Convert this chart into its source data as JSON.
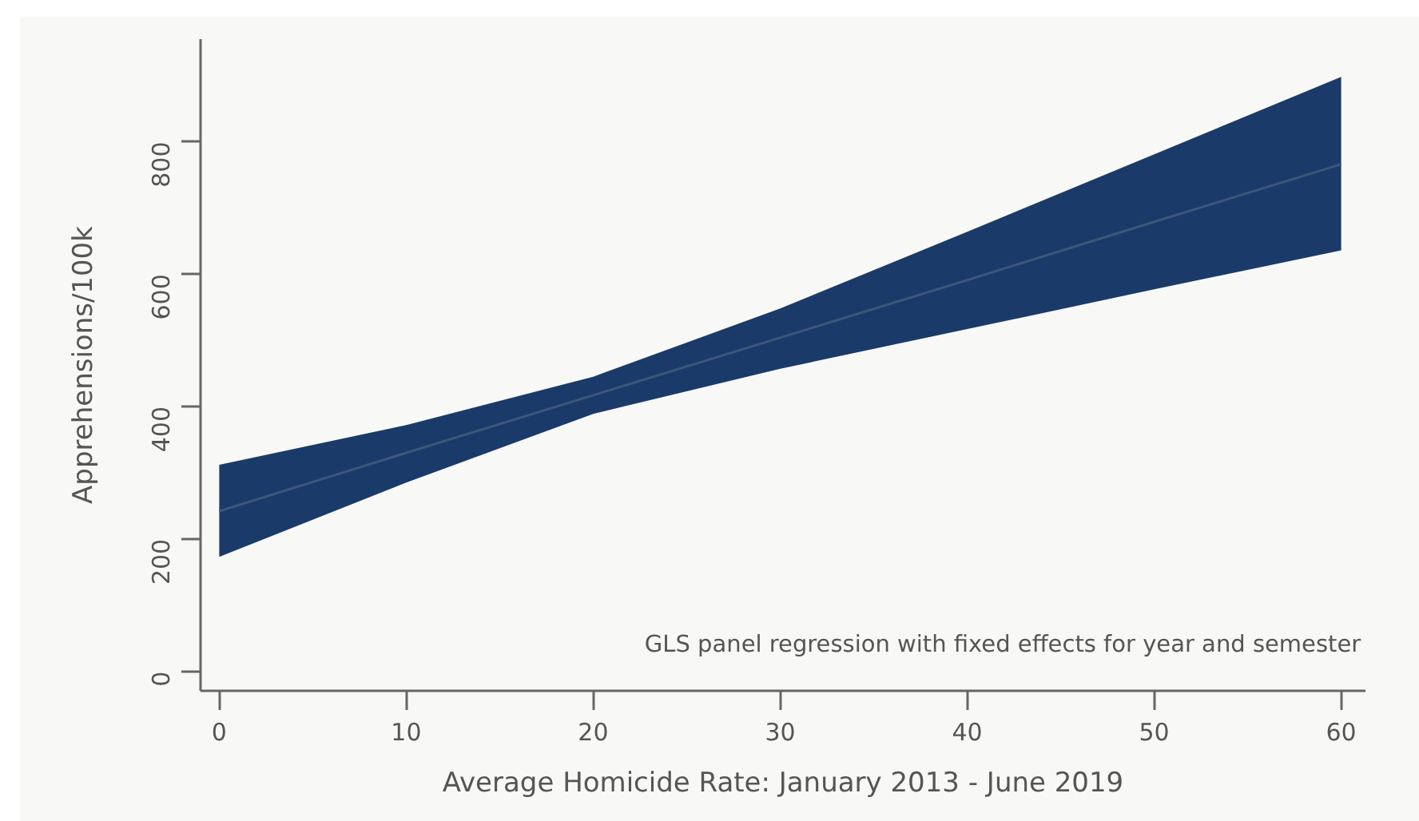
{
  "chart_data": {
    "type": "line",
    "xlabel": "Average Homicide Rate: January 2013 - June 2019",
    "ylabel": "Apprehensions/100k",
    "annotations": [
      "GLS panel regression with fixed effects for year and semester"
    ],
    "x": [
      0,
      10,
      20,
      30,
      40,
      50,
      60
    ],
    "series": [
      {
        "color": "#3e5678",
        "values": [
          242,
          330,
          417,
          504,
          591,
          679,
          766
        ],
        "lower": [
          173,
          285,
          389,
          457,
          517,
          577,
          636
        ],
        "upper": [
          312,
          372,
          445,
          548,
          664,
          781,
          898
        ]
      }
    ],
    "xlim": [
      -1,
      61.3
    ],
    "ylim": [
      -29.5,
      955
    ],
    "xticks": [
      0,
      10,
      20,
      30,
      40,
      50,
      60
    ],
    "yticks": [
      0,
      200,
      400,
      600,
      800
    ],
    "grid": false,
    "marker": "none",
    "line_style": "solid"
  }
}
